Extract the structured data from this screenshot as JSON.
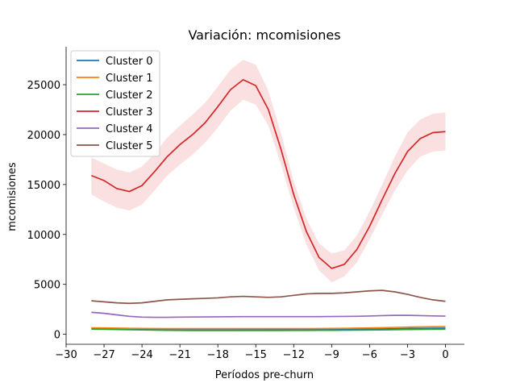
{
  "chart_data": {
    "type": "line",
    "title": "Variación: mcomisiones",
    "xlabel": "Períodos pre-churn",
    "ylabel": "mcomisiones",
    "xlim": [
      -30,
      1.5
    ],
    "ylim": [
      -1000,
      28800
    ],
    "xticks": [
      -30,
      -27,
      -24,
      -21,
      -18,
      -15,
      -12,
      -9,
      -6,
      -3,
      0
    ],
    "xtick_labels": [
      "−30",
      "−27",
      "−24",
      "−21",
      "−18",
      "−15",
      "−12",
      "−9",
      "−6",
      "−3",
      "0"
    ],
    "yticks": [
      0,
      5000,
      10000,
      15000,
      20000,
      25000
    ],
    "ytick_labels": [
      "0",
      "5000",
      "10000",
      "15000",
      "20000",
      "25000"
    ],
    "grid": false,
    "legend_position": "top-left",
    "x": [
      -28,
      -27,
      -26,
      -25,
      -24,
      -23,
      -22,
      -21,
      -20,
      -19,
      -18,
      -17,
      -16,
      -15,
      -14,
      -13,
      -12,
      -11,
      -10,
      -9,
      -8,
      -7,
      -6,
      -5,
      -4,
      -3,
      -2,
      -1,
      0
    ],
    "series": [
      {
        "name": "Cluster 0",
        "color": "#1f77b4",
        "values": [
          600,
          570,
          540,
          510,
          490,
          470,
          460,
          450,
          450,
          450,
          450,
          450,
          460,
          460,
          470,
          470,
          480,
          480,
          490,
          490,
          500,
          510,
          520,
          540,
          560,
          580,
          600,
          610,
          620
        ]
      },
      {
        "name": "Cluster 1",
        "color": "#ff7f0e",
        "values": [
          650,
          640,
          620,
          600,
          590,
          580,
          570,
          570,
          570,
          570,
          570,
          570,
          570,
          570,
          570,
          570,
          570,
          570,
          580,
          590,
          600,
          620,
          640,
          660,
          690,
          720,
          740,
          760,
          770
        ]
      },
      {
        "name": "Cluster 2",
        "color": "#2ca02c",
        "values": [
          520,
          500,
          480,
          460,
          440,
          420,
          400,
          390,
          380,
          380,
          380,
          380,
          380,
          380,
          380,
          380,
          390,
          390,
          400,
          400,
          410,
          420,
          430,
          440,
          460,
          480,
          490,
          500,
          510
        ]
      },
      {
        "name": "Cluster 3",
        "color": "#d62728",
        "values": [
          15900,
          15400,
          14600,
          14300,
          14900,
          16300,
          17800,
          19000,
          20000,
          21200,
          22800,
          24500,
          25500,
          24900,
          22500,
          18500,
          14000,
          10300,
          7700,
          6600,
          7000,
          8500,
          10800,
          13500,
          16100,
          18300,
          19600,
          20200,
          20300
        ],
        "band_lower": [
          14000,
          13300,
          12700,
          12400,
          13000,
          14400,
          15900,
          17000,
          18000,
          19200,
          20700,
          22400,
          23500,
          23000,
          20900,
          17000,
          12700,
          9000,
          6400,
          5200,
          5800,
          7200,
          9500,
          12000,
          14400,
          16400,
          17800,
          18300,
          18400
        ],
        "band_upper": [
          17700,
          17100,
          16500,
          16200,
          16800,
          18100,
          19700,
          20900,
          22000,
          23200,
          24800,
          26500,
          27500,
          27000,
          24400,
          20100,
          15300,
          11600,
          9100,
          8100,
          8400,
          9900,
          12300,
          15000,
          17800,
          20200,
          21500,
          22100,
          22200
        ],
        "band_color": "#f5c6c6"
      },
      {
        "name": "Cluster 4",
        "color": "#9467bd",
        "values": [
          2200,
          2100,
          1950,
          1800,
          1720,
          1700,
          1700,
          1720,
          1730,
          1740,
          1750,
          1760,
          1770,
          1770,
          1770,
          1770,
          1770,
          1770,
          1770,
          1780,
          1790,
          1800,
          1830,
          1870,
          1900,
          1900,
          1870,
          1840,
          1820
        ]
      },
      {
        "name": "Cluster 5",
        "color": "#8c564b",
        "values": [
          3350,
          3250,
          3150,
          3100,
          3150,
          3300,
          3450,
          3500,
          3550,
          3600,
          3650,
          3750,
          3800,
          3750,
          3700,
          3750,
          3900,
          4050,
          4100,
          4100,
          4150,
          4250,
          4350,
          4400,
          4250,
          4000,
          3700,
          3450,
          3300
        ]
      }
    ]
  }
}
